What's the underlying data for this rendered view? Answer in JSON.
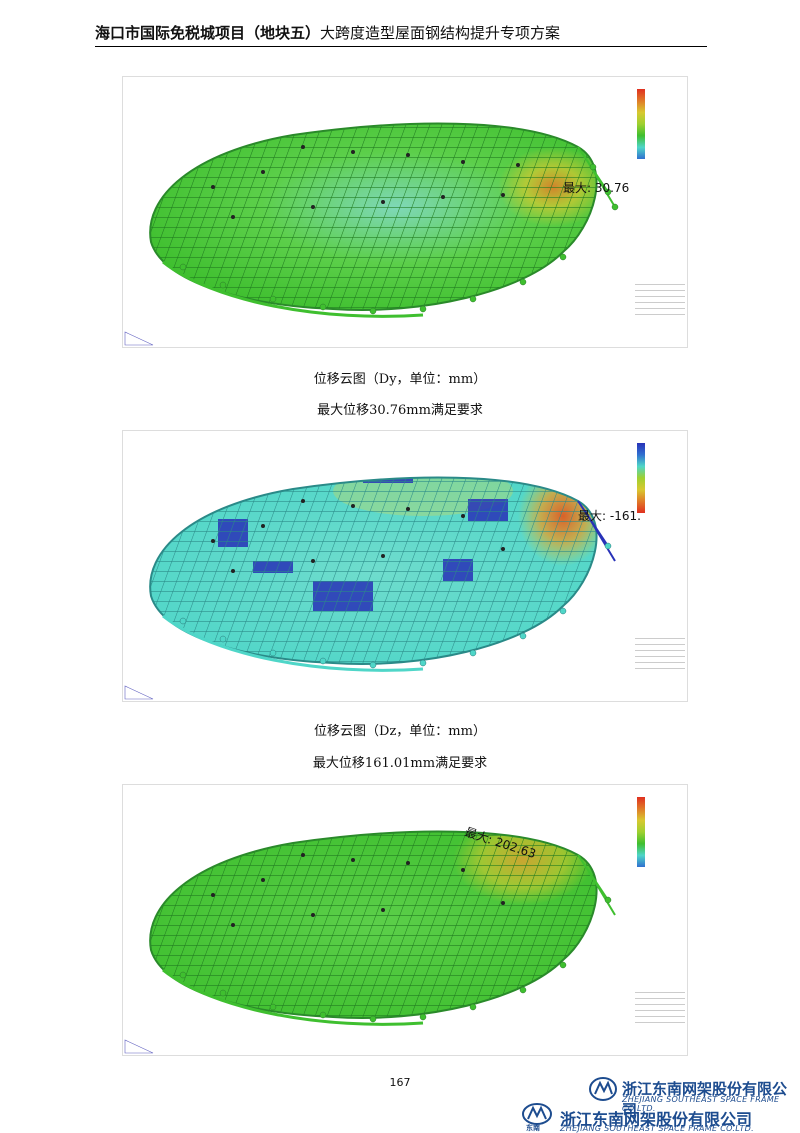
{
  "header": {
    "bold_title": "海口市国际免税城项目（地块五）",
    "normal_title": "大跨度造型屋面钢结构提升专项方案"
  },
  "figures": [
    {
      "max_label": "最大: 30.76",
      "scheme": "green-yellow"
    },
    {
      "max_label": "最大: -161.",
      "scheme": "cyan-blue"
    },
    {
      "max_label": "最大: 202.63",
      "scheme": "green-yellow"
    }
  ],
  "captions": {
    "fig1_title": "位移云图（Dy，单位：mm）",
    "fig1_note": "最大位移30.76mm满足要求",
    "fig2_title": "位移云图（Dz，单位：mm）",
    "fig2_note": "最大位移161.01mm满足要求"
  },
  "page_number": "167",
  "company": {
    "cn": "浙江东南网架股份有限公司",
    "en": "ZHEJIANG SOUTHEAST SPACE FRAME CO.LTD.",
    "logo_mark": "东南"
  },
  "colors": {
    "green": "#3fbf2f",
    "cyan": "#4fd6c8",
    "yellow": "#d8c830",
    "orange": "#e07a28",
    "blue": "#2832b8",
    "brand_blue": "#1d4c8f"
  }
}
